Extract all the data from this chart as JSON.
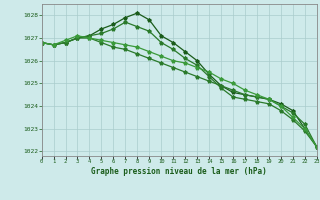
{
  "xlabel": "Graphe pression niveau de la mer (hPa)",
  "background_color": "#ceeaea",
  "grid_color": "#aacccc",
  "line_color1": "#1a5c1a",
  "line_color2": "#2a7a2a",
  "line_color3": "#3a9a3a",
  "x": [
    0,
    1,
    2,
    3,
    4,
    5,
    6,
    7,
    8,
    9,
    10,
    11,
    12,
    13,
    14,
    15,
    16,
    17,
    18,
    19,
    20,
    21,
    22,
    23
  ],
  "series1": [
    1026.8,
    1026.7,
    1026.8,
    1027.0,
    1027.1,
    1027.4,
    1027.6,
    1027.9,
    1028.1,
    1027.8,
    1027.1,
    1026.8,
    1026.4,
    1026.0,
    1025.4,
    1024.9,
    1024.6,
    1024.5,
    1024.4,
    1024.3,
    1024.1,
    1023.8,
    1023.0,
    1022.2
  ],
  "series2": [
    1026.8,
    1026.7,
    1026.8,
    1027.0,
    1027.1,
    1027.2,
    1027.4,
    1027.7,
    1027.5,
    1027.3,
    1026.8,
    1026.5,
    1026.1,
    1025.8,
    1025.3,
    1024.8,
    1024.4,
    1024.3,
    1024.2,
    1024.1,
    1023.8,
    1023.4,
    1022.9,
    1022.2
  ],
  "series3": [
    1026.8,
    1026.7,
    1026.8,
    1027.0,
    1027.0,
    1026.8,
    1026.6,
    1026.5,
    1026.3,
    1026.1,
    1025.9,
    1025.7,
    1025.5,
    1025.3,
    1025.1,
    1024.9,
    1024.7,
    1024.5,
    1024.4,
    1024.3,
    1024.0,
    1023.7,
    1023.2,
    1022.2
  ],
  "series4": [
    1026.8,
    1026.7,
    1026.9,
    1027.1,
    1027.0,
    1026.9,
    1026.8,
    1026.7,
    1026.6,
    1026.4,
    1026.2,
    1026.0,
    1025.9,
    1025.7,
    1025.5,
    1025.2,
    1025.0,
    1024.7,
    1024.5,
    1024.3,
    1024.0,
    1023.5,
    1023.0,
    1022.2
  ],
  "ylim": [
    1021.8,
    1028.5
  ],
  "yticks": [
    1022,
    1023,
    1024,
    1025,
    1026,
    1027,
    1028
  ],
  "xlim": [
    0,
    23
  ],
  "xtick_labels": [
    "0",
    "1",
    "2",
    "3",
    "4",
    "5",
    "6",
    "7",
    "8",
    "9",
    "10",
    "11",
    "12",
    "13",
    "14",
    "15",
    "16",
    "17",
    "18",
    "19",
    "20",
    "21",
    "22",
    "23"
  ]
}
